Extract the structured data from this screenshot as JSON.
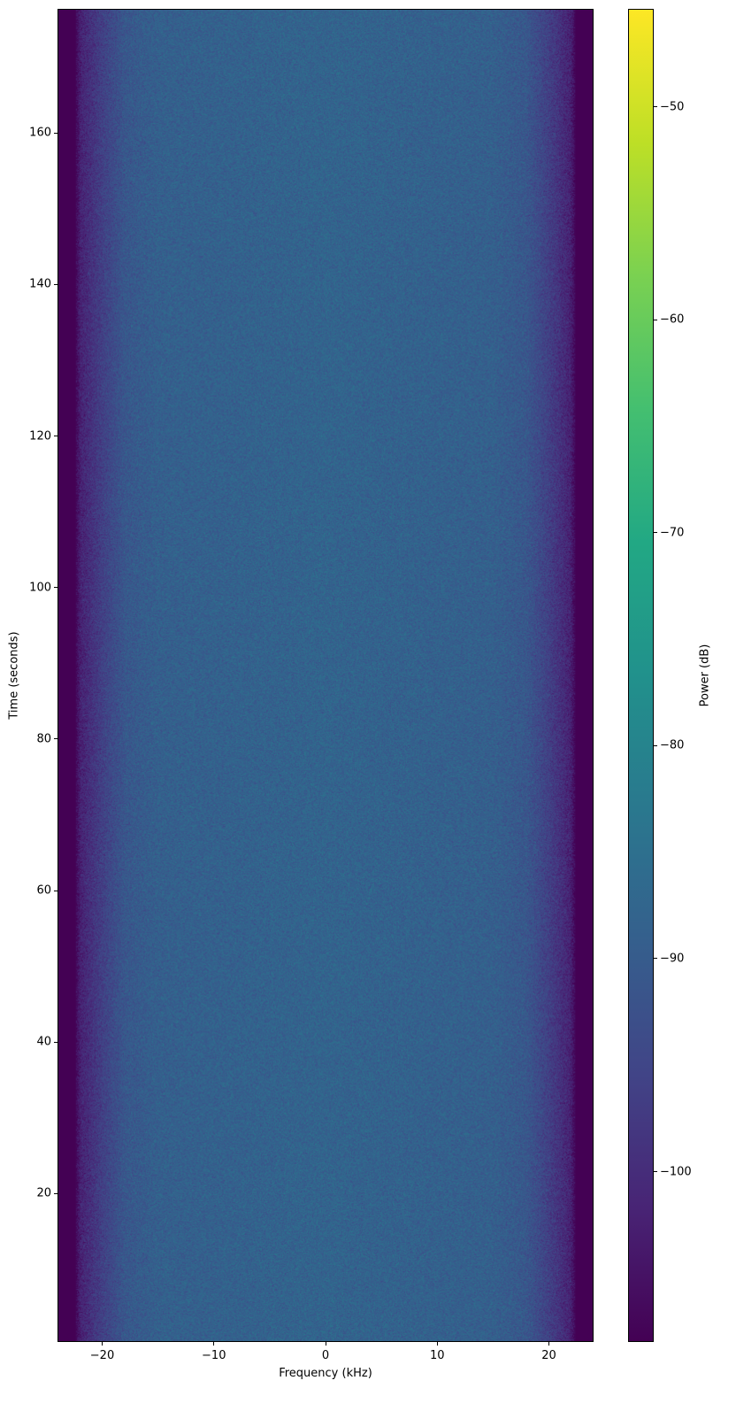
{
  "chart_data": {
    "type": "heatmap",
    "title": "",
    "xlabel": "Frequency (kHz)",
    "ylabel": "Time (seconds)",
    "xlim": [
      -24,
      24
    ],
    "ylim": [
      0.4,
      176.4
    ],
    "xticks": [
      -20,
      -10,
      0,
      10,
      20
    ],
    "xtick_labels": [
      "−20",
      "−10",
      "0",
      "10",
      "20"
    ],
    "yticks": [
      20,
      40,
      60,
      80,
      100,
      120,
      140,
      160
    ],
    "ytick_labels": [
      "20",
      "40",
      "60",
      "80",
      "100",
      "120",
      "140",
      "160"
    ],
    "colormap": "viridis",
    "colorbar": {
      "label": "Power (dB)",
      "range": [
        -108,
        -45.4
      ],
      "ticks": [
        -50,
        -60,
        -70,
        -80,
        -90,
        -100
      ],
      "tick_labels": [
        "−50",
        "−60",
        "−70",
        "−80",
        "−90",
        "−100"
      ]
    },
    "frequency_profile_db": {
      "frequency_khz": [
        -24,
        -22.5,
        -22,
        -20,
        -18,
        -15,
        0,
        15,
        18,
        20,
        22,
        22.5,
        24
      ],
      "power_db": [
        -108,
        -108,
        -102,
        -96,
        -91,
        -89,
        -88,
        -89,
        -91,
        -96,
        -102,
        -108,
        -108
      ]
    },
    "noise_std_db": 3,
    "grid": false
  }
}
